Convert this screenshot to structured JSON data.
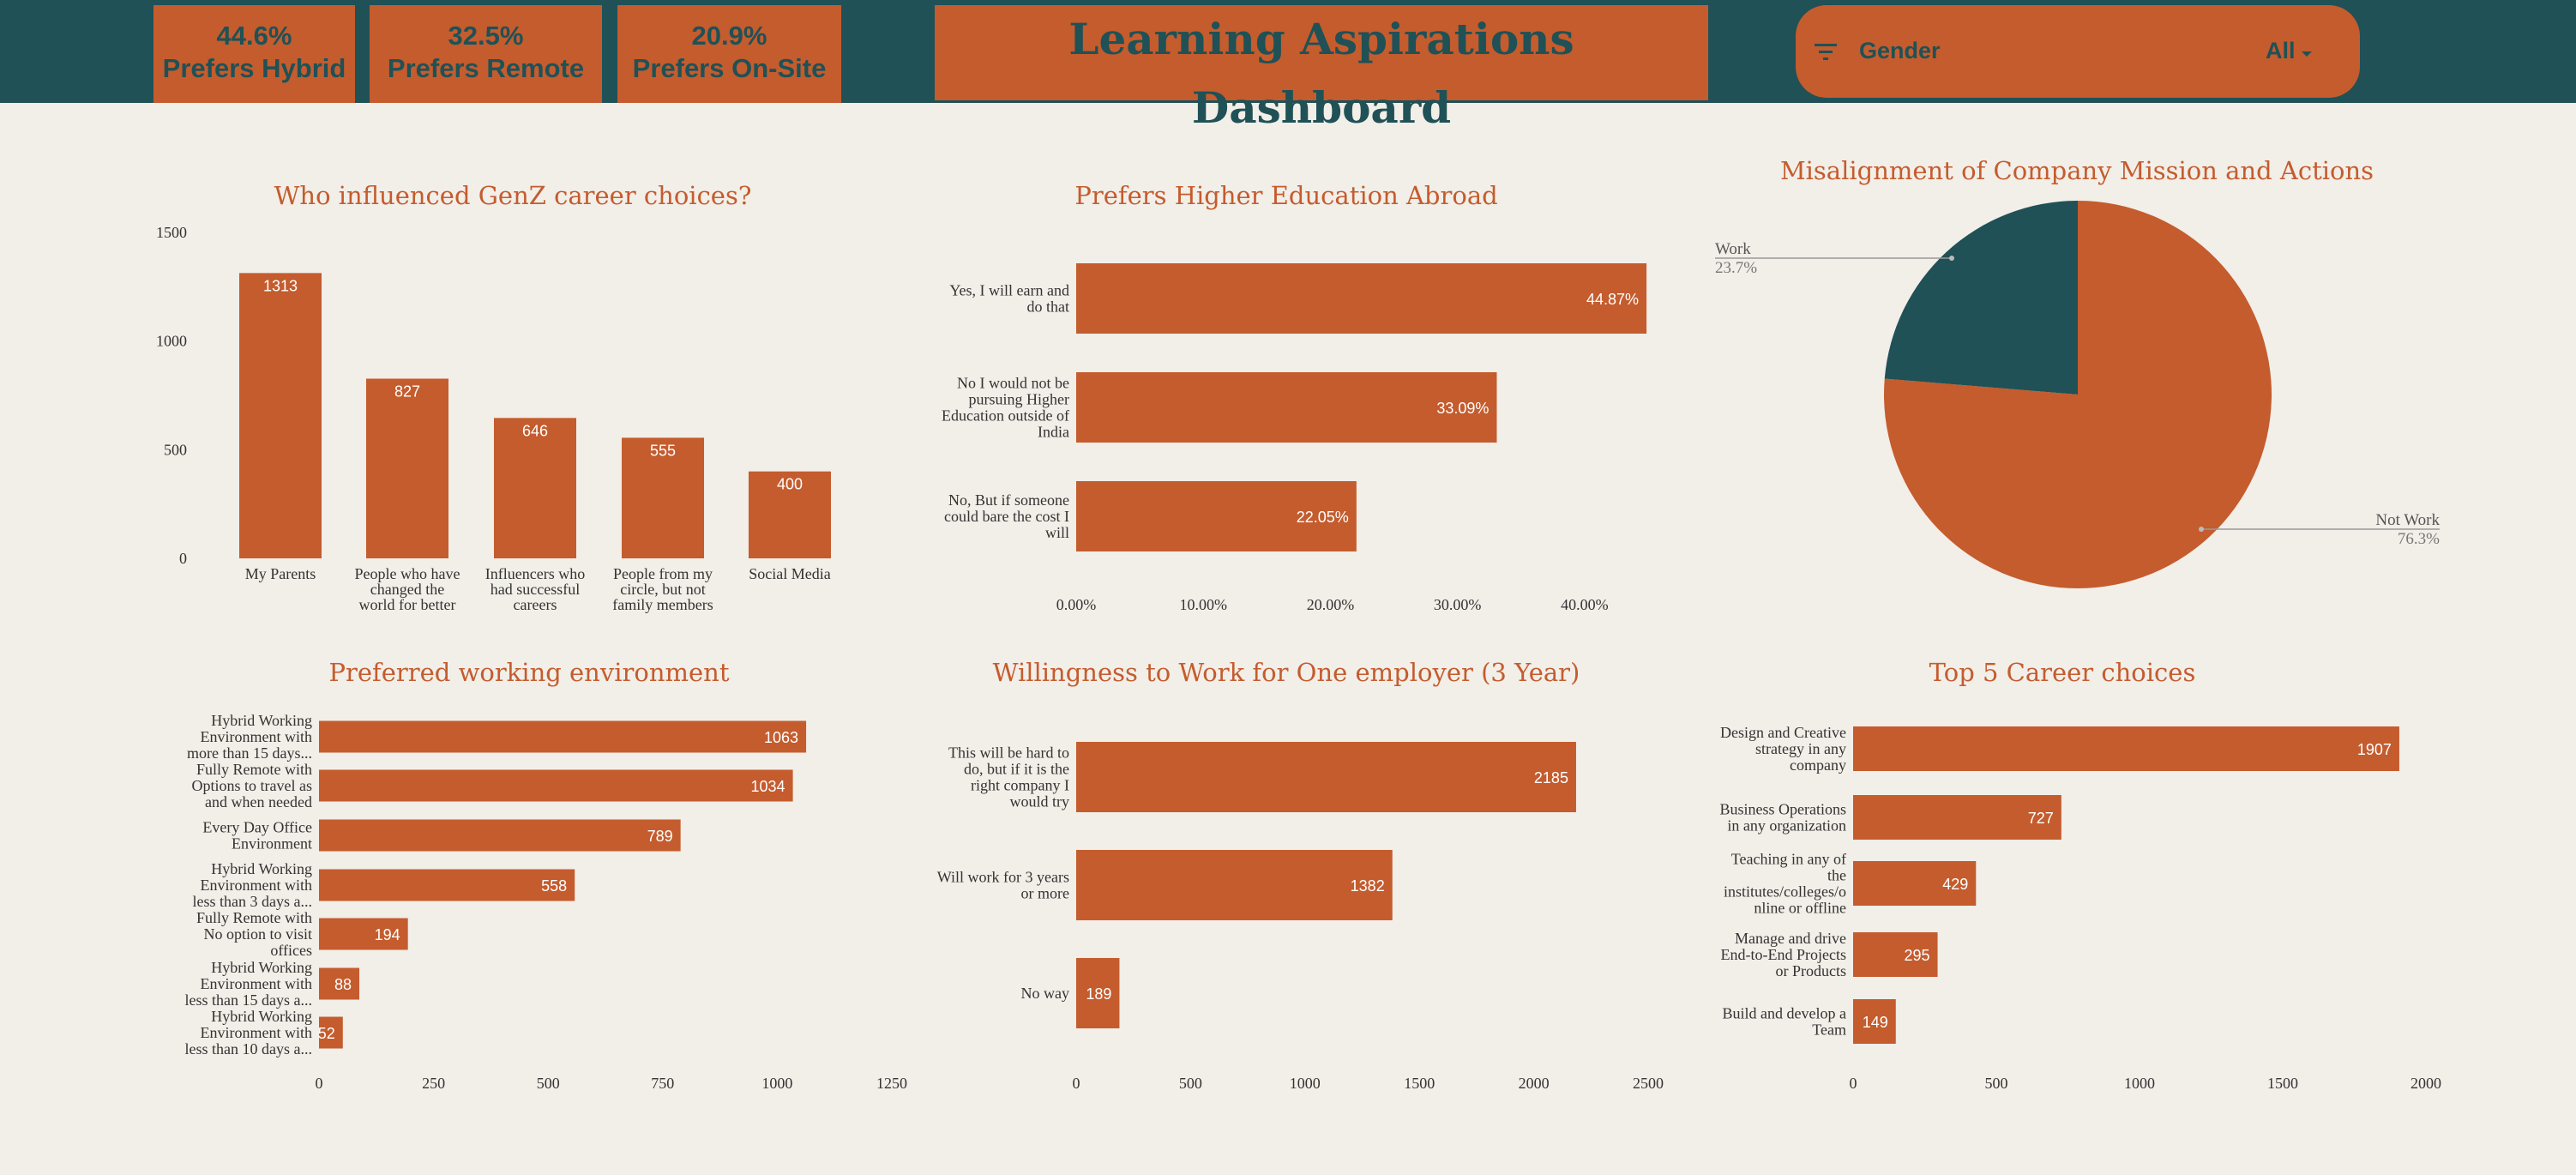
{
  "header": {
    "title": "Learning Aspirations Dashboard",
    "kpis": [
      {
        "value": "44.6%",
        "label": "Prefers Hybrid"
      },
      {
        "value": "32.5%",
        "label": "Prefers Remote"
      },
      {
        "value": "20.9%",
        "label": "Prefers On-Site"
      }
    ],
    "filter": {
      "label": "Gender",
      "value": "All",
      "icon": "filter-icon"
    }
  },
  "colors": {
    "accent": "#C45C2E",
    "dark": "#1F5156",
    "background": "#F2EEE8"
  },
  "chart_data": [
    {
      "id": "influence",
      "type": "bar",
      "title": "Who influenced GenZ career choices?",
      "categories": [
        [
          "My Parents"
        ],
        [
          "People who have",
          "changed the",
          "world for better"
        ],
        [
          "Influencers who",
          "had successful",
          "careers"
        ],
        [
          "People from my",
          "circle, but not",
          "family members"
        ],
        [
          "Social Media"
        ]
      ],
      "values": [
        1313,
        827,
        646,
        555,
        400
      ],
      "ylim": [
        0,
        1500
      ],
      "yticks": [
        0,
        500,
        1000,
        1500
      ]
    },
    {
      "id": "abroad",
      "type": "bar",
      "orientation": "horizontal",
      "title": "Prefers Higher Education Abroad",
      "categories": [
        [
          "Yes, I will earn and",
          "do that"
        ],
        [
          "No I would not be",
          "pursuing Higher",
          "Education outside of",
          "India"
        ],
        [
          "No, But if someone",
          "could bare the cost I",
          "will"
        ]
      ],
      "values": [
        44.87,
        33.09,
        22.05
      ],
      "value_labels": [
        "44.87%",
        "33.09%",
        "22.05%"
      ],
      "xlim": [
        0,
        45
      ],
      "xticks": [
        "0.00%",
        "10.00%",
        "20.00%",
        "30.00%",
        "40.00%"
      ],
      "xtick_values": [
        0,
        10,
        20,
        30,
        40
      ]
    },
    {
      "id": "misalignment",
      "type": "pie",
      "title": "Misalignment of Company Mission and Actions",
      "slices": [
        {
          "label": "Not Work",
          "value": 76.3,
          "display": "76.3%",
          "color": "#C45C2E"
        },
        {
          "label": "Work",
          "value": 23.7,
          "display": "23.7%",
          "color": "#1F5156"
        }
      ]
    },
    {
      "id": "environment",
      "type": "bar",
      "orientation": "horizontal",
      "title": "Preferred working environment",
      "categories": [
        [
          "Hybrid Working",
          "Environment with",
          "more than 15 days..."
        ],
        [
          "Fully Remote with",
          "Options to travel as",
          "and when needed"
        ],
        [
          "Every Day Office",
          "Environment"
        ],
        [
          "Hybrid Working",
          "Environment with",
          "less than 3 days a..."
        ],
        [
          "Fully Remote with",
          "No option to visit",
          "offices"
        ],
        [
          "Hybrid Working",
          "Environment with",
          "less than 15 days a..."
        ],
        [
          "Hybrid Working",
          "Environment with",
          "less than 10 days a..."
        ]
      ],
      "values": [
        1063,
        1034,
        789,
        558,
        194,
        88,
        52
      ],
      "xlim": [
        0,
        1250
      ],
      "xticks": [
        0,
        250,
        500,
        750,
        1000,
        1250
      ]
    },
    {
      "id": "employer",
      "type": "bar",
      "orientation": "horizontal",
      "title": "Willingness to Work  for One employer (3 Year)",
      "categories": [
        [
          "This will be hard to",
          "do, but if it is the",
          "right company I",
          "would try"
        ],
        [
          "Will work for 3 years",
          "or more"
        ],
        [
          "No way"
        ]
      ],
      "values": [
        2185,
        1382,
        189
      ],
      "xlim": [
        0,
        2500
      ],
      "xticks": [
        0,
        500,
        1000,
        1500,
        2000,
        2500
      ]
    },
    {
      "id": "careers",
      "type": "bar",
      "orientation": "horizontal",
      "title": "Top 5 Career choices",
      "categories": [
        [
          "Design and Creative",
          "strategy in any",
          "company"
        ],
        [
          "Business Operations",
          "in any organization"
        ],
        [
          "Teaching in any of",
          "the",
          "institutes/colleges/o",
          "nline or offline"
        ],
        [
          "Manage and drive",
          "End-to-End Projects",
          "or Products"
        ],
        [
          "Build and develop a",
          "Team"
        ]
      ],
      "values": [
        1907,
        727,
        429,
        295,
        149
      ],
      "xlim": [
        0,
        2000
      ],
      "xticks": [
        0,
        500,
        1000,
        1500,
        2000
      ]
    }
  ]
}
